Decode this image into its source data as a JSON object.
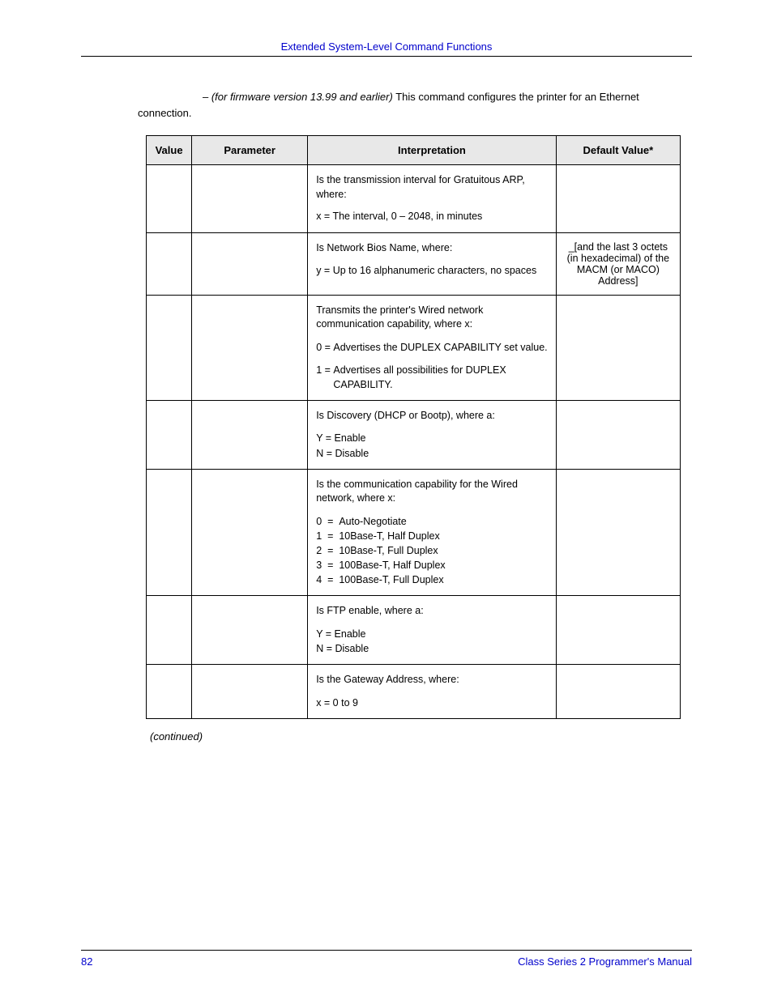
{
  "header": {
    "title": "Extended System-Level Command Functions"
  },
  "intro": {
    "lead_dash": "– ",
    "italic": "(for firmware version 13.99 and earlier)",
    "tail": " This command configures the printer for an Ethernet connection."
  },
  "table": {
    "headers": {
      "value": "Value",
      "parameter": "Parameter",
      "interpretation": "Interpretation",
      "default": "Default Value*"
    },
    "rows": [
      {
        "interp": {
          "p1": "Is the transmission interval for Gratuitous ARP, where:",
          "p2": "x = The interval, 0 – 2048, in minutes"
        },
        "default": ""
      },
      {
        "interp": {
          "p1": "Is Network Bios Name, where:",
          "eq": {
            "k": "y = ",
            "v": "Up to 16 alphanumeric characters, no spaces"
          }
        },
        "default": "_[and the last 3 octets (in hexadecimal) of the MACM (or MACO) Address]"
      },
      {
        "interp": {
          "p1": "Transmits the printer's Wired network communication capability, where x:",
          "eq1": {
            "k": "0 = ",
            "v": "Advertises the DUPLEX CAPABILITY set value."
          },
          "eq2": {
            "k": "1 = ",
            "v": "Advertises all possibilities for DUPLEX CAPABILITY."
          }
        },
        "default": ""
      },
      {
        "interp": {
          "p1": "Is Discovery (DHCP or Bootp), where a:",
          "l1": "Y = Enable",
          "l2": "N = Disable"
        },
        "default": ""
      },
      {
        "interp": {
          "p1": "Is the communication capability for the Wired network, where x:",
          "o0": {
            "k": "0  =  ",
            "v": "Auto-Negotiate"
          },
          "o1": {
            "k": "1  =  ",
            "v": "10Base-T, Half Duplex"
          },
          "o2": {
            "k": "2  =  ",
            "v": "10Base-T, Full Duplex"
          },
          "o3": {
            "k": "3  =  ",
            "v": "100Base-T, Half Duplex"
          },
          "o4": {
            "k": "4  =  ",
            "v": "100Base-T, Full Duplex"
          }
        },
        "default": ""
      },
      {
        "interp": {
          "p1": "Is FTP enable, where a:",
          "l1": "Y = Enable",
          "l2": "N = Disable"
        },
        "default": ""
      },
      {
        "interp": {
          "p1": "Is the Gateway Address, where:",
          "l1": "x = 0 to 9"
        },
        "default": ""
      }
    ]
  },
  "continued": "(continued)",
  "footer": {
    "page": "82",
    "manual": "Class Series 2 Programmer's Manual"
  }
}
